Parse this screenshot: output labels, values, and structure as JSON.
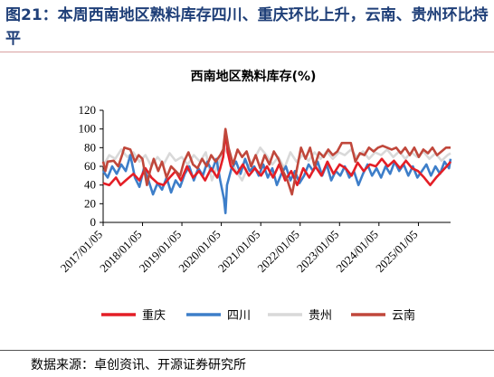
{
  "figure": {
    "title": "图21：本周西南地区熟料库存四川、重庆环比上升，云南、贵州环比持平",
    "source": "数据来源：卓创资讯、开源证券研究所"
  },
  "chart_data": {
    "type": "line",
    "title": "西南地区熟料库存(%)",
    "xlabel": "",
    "ylabel": "",
    "ylim": [
      0,
      120
    ],
    "yticks": [
      0,
      20,
      40,
      60,
      80,
      100,
      120
    ],
    "xticks": [
      "2017/01/05",
      "2018/01/05",
      "2019/01/05",
      "2020/01/05",
      "2021/01/05",
      "2022/01/05",
      "2023/01/05",
      "2024/01/05",
      "2025/01/05"
    ],
    "x_start": "2017/01/05",
    "x_end": "2025/10/30",
    "grid": false,
    "legend": "bottom",
    "series": [
      {
        "name": "重庆",
        "color": "#e41e26",
        "points": [
          [
            "2017/01/05",
            42
          ],
          [
            "2017/03/02",
            40
          ],
          [
            "2017/05/04",
            48
          ],
          [
            "2017/06/15",
            40
          ],
          [
            "2017/08/03",
            45
          ],
          [
            "2017/10/12",
            52
          ],
          [
            "2017/12/07",
            45
          ],
          [
            "2018/02/01",
            58
          ],
          [
            "2018/03/29",
            48
          ],
          [
            "2018/05/24",
            42
          ],
          [
            "2018/07/19",
            40
          ],
          [
            "2018/09/13",
            48
          ],
          [
            "2018/11/08",
            55
          ],
          [
            "2018/12/27",
            45
          ],
          [
            "2019/02/21",
            60
          ],
          [
            "2019/04/18",
            48
          ],
          [
            "2019/06/13",
            55
          ],
          [
            "2019/08/08",
            45
          ],
          [
            "2019/10/03",
            58
          ],
          [
            "2019/11/28",
            48
          ],
          [
            "2019/12/26",
            58
          ],
          [
            "2020/01/23",
            70
          ],
          [
            "2020/02/13",
            98
          ],
          [
            "2020/03/05",
            75
          ],
          [
            "2020/04/02",
            60
          ],
          [
            "2020/05/28",
            52
          ],
          [
            "2020/07/23",
            62
          ],
          [
            "2020/09/17",
            50
          ],
          [
            "2020/11/12",
            58
          ],
          [
            "2021/01/07",
            50
          ],
          [
            "2021/03/04",
            60
          ],
          [
            "2021/04/29",
            48
          ],
          [
            "2021/06/24",
            62
          ],
          [
            "2021/08/19",
            45
          ],
          [
            "2021/10/14",
            55
          ],
          [
            "2021/12/09",
            40
          ],
          [
            "2022/02/03",
            58
          ],
          [
            "2022/03/31",
            48
          ],
          [
            "2022/05/26",
            60
          ],
          [
            "2022/07/21",
            50
          ],
          [
            "2022/09/15",
            65
          ],
          [
            "2022/11/10",
            52
          ],
          [
            "2023/01/05",
            62
          ],
          [
            "2023/03/02",
            58
          ],
          [
            "2023/04/27",
            50
          ],
          [
            "2023/06/22",
            64
          ],
          [
            "2023/08/17",
            55
          ],
          [
            "2023/10/12",
            62
          ],
          [
            "2023/12/07",
            60
          ],
          [
            "2024/02/01",
            68
          ],
          [
            "2024/03/28",
            60
          ],
          [
            "2024/05/23",
            66
          ],
          [
            "2024/07/18",
            58
          ],
          [
            "2024/09/12",
            66
          ],
          [
            "2024/11/07",
            58
          ],
          [
            "2025/01/02",
            55
          ],
          [
            "2025/02/27",
            48
          ],
          [
            "2025/04/24",
            40
          ],
          [
            "2025/06/19",
            48
          ],
          [
            "2025/08/14",
            55
          ],
          [
            "2025/10/09",
            62
          ],
          [
            "2025/10/30",
            65
          ]
        ]
      },
      {
        "name": "四川",
        "color": "#3d7ec9",
        "points": [
          [
            "2017/01/05",
            55
          ],
          [
            "2017/02/16",
            48
          ],
          [
            "2017/03/30",
            60
          ],
          [
            "2017/05/11",
            52
          ],
          [
            "2017/06/22",
            62
          ],
          [
            "2017/08/03",
            55
          ],
          [
            "2017/09/14",
            72
          ],
          [
            "2017/10/26",
            48
          ],
          [
            "2017/12/07",
            38
          ],
          [
            "2018/01/18",
            58
          ],
          [
            "2018/03/01",
            45
          ],
          [
            "2018/04/12",
            30
          ],
          [
            "2018/05/24",
            42
          ],
          [
            "2018/07/05",
            35
          ],
          [
            "2018/08/16",
            48
          ],
          [
            "2018/09/27",
            32
          ],
          [
            "2018/11/08",
            45
          ],
          [
            "2018/12/20",
            38
          ],
          [
            "2019/01/31",
            52
          ],
          [
            "2019/03/14",
            60
          ],
          [
            "2019/04/25",
            45
          ],
          [
            "2019/06/06",
            58
          ],
          [
            "2019/07/18",
            50
          ],
          [
            "2019/08/29",
            65
          ],
          [
            "2019/10/10",
            55
          ],
          [
            "2019/11/21",
            68
          ],
          [
            "2019/12/26",
            45
          ],
          [
            "2020/01/30",
            25
          ],
          [
            "2020/02/13",
            10
          ],
          [
            "2020/02/27",
            40
          ],
          [
            "2020/04/09",
            58
          ],
          [
            "2020/05/21",
            65
          ],
          [
            "2020/07/02",
            52
          ],
          [
            "2020/08/13",
            68
          ],
          [
            "2020/09/24",
            55
          ],
          [
            "2020/11/05",
            60
          ],
          [
            "2020/12/17",
            50
          ],
          [
            "2021/01/28",
            62
          ],
          [
            "2021/03/11",
            48
          ],
          [
            "2021/04/22",
            58
          ],
          [
            "2021/06/03",
            40
          ],
          [
            "2021/07/15",
            52
          ],
          [
            "2021/08/26",
            60
          ],
          [
            "2021/10/07",
            45
          ],
          [
            "2021/11/18",
            55
          ],
          [
            "2021/12/30",
            42
          ],
          [
            "2022/02/10",
            50
          ],
          [
            "2022/03/24",
            62
          ],
          [
            "2022/05/05",
            55
          ],
          [
            "2022/06/16",
            65
          ],
          [
            "2022/07/28",
            50
          ],
          [
            "2022/09/08",
            62
          ],
          [
            "2022/10/20",
            45
          ],
          [
            "2022/12/01",
            55
          ],
          [
            "2023/01/12",
            50
          ],
          [
            "2023/02/23",
            60
          ],
          [
            "2023/04/06",
            48
          ],
          [
            "2023/05/18",
            55
          ],
          [
            "2023/06/29",
            40
          ],
          [
            "2023/08/10",
            52
          ],
          [
            "2023/09/21",
            62
          ],
          [
            "2023/11/02",
            50
          ],
          [
            "2023/12/14",
            58
          ],
          [
            "2024/01/25",
            48
          ],
          [
            "2024/03/07",
            60
          ],
          [
            "2024/04/18",
            52
          ],
          [
            "2024/05/30",
            65
          ],
          [
            "2024/07/11",
            55
          ],
          [
            "2024/08/22",
            62
          ],
          [
            "2024/10/03",
            50
          ],
          [
            "2024/11/14",
            60
          ],
          [
            "2024/12/26",
            48
          ],
          [
            "2025/02/06",
            55
          ],
          [
            "2025/03/20",
            62
          ],
          [
            "2025/05/01",
            50
          ],
          [
            "2025/06/12",
            60
          ],
          [
            "2025/07/24",
            52
          ],
          [
            "2025/09/04",
            65
          ],
          [
            "2025/10/16",
            58
          ],
          [
            "2025/10/30",
            68
          ]
        ]
      },
      {
        "name": "贵州",
        "color": "#d9d9d9",
        "points": [
          [
            "2017/01/05",
            60
          ],
          [
            "2017/03/02",
            72
          ],
          [
            "2017/04/27",
            68
          ],
          [
            "2017/06/22",
            78
          ],
          [
            "2017/08/17",
            70
          ],
          [
            "2017/10/12",
            75
          ],
          [
            "2017/12/07",
            65
          ],
          [
            "2018/02/01",
            72
          ],
          [
            "2018/03/29",
            60
          ],
          [
            "2018/05/24",
            70
          ],
          [
            "2018/07/19",
            62
          ],
          [
            "2018/09/13",
            74
          ],
          [
            "2018/11/08",
            66
          ],
          [
            "2019/01/03",
            70
          ],
          [
            "2019/02/28",
            62
          ],
          [
            "2019/04/25",
            72
          ],
          [
            "2019/06/20",
            65
          ],
          [
            "2019/08/15",
            75
          ],
          [
            "2019/10/10",
            45
          ],
          [
            "2019/12/05",
            62
          ],
          [
            "2020/01/30",
            80
          ],
          [
            "2020/03/26",
            70
          ],
          [
            "2020/05/21",
            55
          ],
          [
            "2020/07/16",
            45
          ],
          [
            "2020/09/10",
            60
          ],
          [
            "2020/11/05",
            68
          ],
          [
            "2020/12/31",
            80
          ],
          [
            "2021/02/25",
            72
          ],
          [
            "2021/04/22",
            62
          ],
          [
            "2021/06/17",
            70
          ],
          [
            "2021/08/12",
            58
          ],
          [
            "2021/10/07",
            75
          ],
          [
            "2021/12/02",
            65
          ],
          [
            "2022/01/27",
            72
          ],
          [
            "2022/03/24",
            66
          ],
          [
            "2022/05/19",
            75
          ],
          [
            "2022/07/14",
            68
          ],
          [
            "2022/09/08",
            76
          ],
          [
            "2022/11/03",
            68
          ],
          [
            "2022/12/29",
            75
          ],
          [
            "2023/02/23",
            72
          ],
          [
            "2023/04/20",
            78
          ],
          [
            "2023/06/15",
            70
          ],
          [
            "2023/08/10",
            76
          ],
          [
            "2023/10/05",
            68
          ],
          [
            "2023/11/30",
            75
          ],
          [
            "2024/01/25",
            72
          ],
          [
            "2024/03/21",
            78
          ],
          [
            "2024/05/16",
            70
          ],
          [
            "2024/07/11",
            76
          ],
          [
            "2024/09/05",
            68
          ],
          [
            "2024/10/31",
            75
          ],
          [
            "2024/12/26",
            70
          ],
          [
            "2025/02/20",
            76
          ],
          [
            "2025/04/17",
            68
          ],
          [
            "2025/06/12",
            74
          ],
          [
            "2025/08/07",
            66
          ],
          [
            "2025/10/02",
            72
          ],
          [
            "2025/10/30",
            74
          ]
        ]
      },
      {
        "name": "云南",
        "color": "#c0473b",
        "points": [
          [
            "2017/01/05",
            65
          ],
          [
            "2017/01/26",
            55
          ],
          [
            "2017/02/16",
            65
          ],
          [
            "2017/04/13",
            66
          ],
          [
            "2017/05/25",
            60
          ],
          [
            "2017/06/29",
            72
          ],
          [
            "2017/07/20",
            80
          ],
          [
            "2017/09/14",
            78
          ],
          [
            "2017/10/26",
            65
          ],
          [
            "2017/11/30",
            72
          ],
          [
            "2018/01/04",
            68
          ],
          [
            "2018/02/15",
            40
          ],
          [
            "2018/03/15",
            55
          ],
          [
            "2018/04/19",
            68
          ],
          [
            "2018/05/31",
            55
          ],
          [
            "2018/07/05",
            65
          ],
          [
            "2018/08/16",
            48
          ],
          [
            "2018/09/27",
            60
          ],
          [
            "2018/11/08",
            55
          ],
          [
            "2018/12/20",
            50
          ],
          [
            "2019/01/24",
            65
          ],
          [
            "2019/03/07",
            75
          ],
          [
            "2019/04/18",
            62
          ],
          [
            "2019/05/30",
            58
          ],
          [
            "2019/07/11",
            68
          ],
          [
            "2019/08/22",
            60
          ],
          [
            "2019/10/03",
            72
          ],
          [
            "2019/11/14",
            65
          ],
          [
            "2019/12/26",
            72
          ],
          [
            "2020/01/23",
            78
          ],
          [
            "2020/02/13",
            100
          ],
          [
            "2020/03/12",
            80
          ],
          [
            "2020/04/23",
            62
          ],
          [
            "2020/06/04",
            78
          ],
          [
            "2020/07/16",
            70
          ],
          [
            "2020/08/27",
            76
          ],
          [
            "2020/10/08",
            60
          ],
          [
            "2020/11/19",
            72
          ],
          [
            "2020/12/31",
            58
          ],
          [
            "2021/02/11",
            72
          ],
          [
            "2021/03/25",
            62
          ],
          [
            "2021/05/06",
            76
          ],
          [
            "2021/06/17",
            68
          ],
          [
            "2021/07/29",
            55
          ],
          [
            "2021/09/09",
            45
          ],
          [
            "2021/10/21",
            30
          ],
          [
            "2021/12/02",
            55
          ],
          [
            "2022/01/13",
            80
          ],
          [
            "2022/02/24",
            68
          ],
          [
            "2022/04/07",
            80
          ],
          [
            "2022/05/19",
            60
          ],
          [
            "2022/06/30",
            75
          ],
          [
            "2022/08/11",
            70
          ],
          [
            "2022/09/22",
            78
          ],
          [
            "2022/11/03",
            72
          ],
          [
            "2022/12/15",
            76
          ],
          [
            "2023/01/26",
            85
          ],
          [
            "2023/03/09",
            85
          ],
          [
            "2023/04/20",
            85
          ],
          [
            "2023/06/01",
            65
          ],
          [
            "2023/07/13",
            74
          ],
          [
            "2023/08/24",
            72
          ],
          [
            "2023/10/05",
            80
          ],
          [
            "2023/11/16",
            76
          ],
          [
            "2023/12/28",
            80
          ],
          [
            "2024/02/08",
            82
          ],
          [
            "2024/03/21",
            80
          ],
          [
            "2024/05/02",
            78
          ],
          [
            "2024/06/13",
            80
          ],
          [
            "2024/07/25",
            74
          ],
          [
            "2024/09/05",
            80
          ],
          [
            "2024/10/17",
            72
          ],
          [
            "2024/11/28",
            80
          ],
          [
            "2025/01/09",
            70
          ],
          [
            "2025/02/20",
            78
          ],
          [
            "2025/04/03",
            74
          ],
          [
            "2025/05/15",
            80
          ],
          [
            "2025/06/26",
            72
          ],
          [
            "2025/08/07",
            76
          ],
          [
            "2025/09/18",
            80
          ],
          [
            "2025/10/30",
            80
          ]
        ]
      }
    ]
  }
}
